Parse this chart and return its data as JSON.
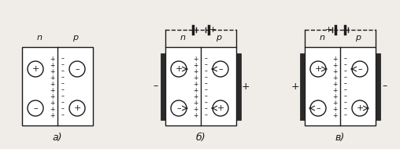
{
  "bg_color": "#f0ede8",
  "box_fill": "#ffffff",
  "dark_fill": "#2a2a2a",
  "line_color": "#1a1a1a",
  "label_a": "a)",
  "label_b": "б)",
  "label_c": "в)",
  "label_n": "n",
  "label_p": "p",
  "font_size_label": 9,
  "font_size_np": 8
}
